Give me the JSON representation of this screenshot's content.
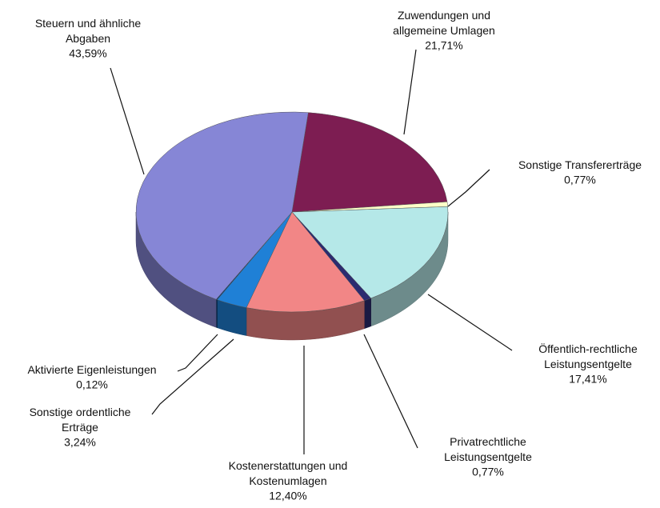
{
  "chart_data": {
    "type": "pie3d",
    "categories": [
      "Zuwendungen und allgemeine Umlagen",
      "Sonstige Transfererträge",
      "Öffentlich-rechtliche Leistungsentgelte",
      "Privatrechtliche Leistungsentgelte",
      "Kostenerstattungen und Kostenumlagen",
      "Sonstige ordentliche Erträge",
      "Aktivierte Eigenleistungen",
      "Steuern und ähnliche Abgaben"
    ],
    "values": [
      21.71,
      0.77,
      17.41,
      0.77,
      12.4,
      3.24,
      0.12,
      43.59
    ],
    "value_labels": [
      "21,71%",
      "0,77%",
      "17,41%",
      "0,77%",
      "12,40%",
      "3,24%",
      "0,12%",
      "43,59%"
    ],
    "colors": [
      "#7d1d52",
      "#ffffc8",
      "#b5e8e8",
      "#2b2b70",
      "#f28686",
      "#1f80d6",
      "#0a3a70",
      "#8686d6"
    ]
  }
}
